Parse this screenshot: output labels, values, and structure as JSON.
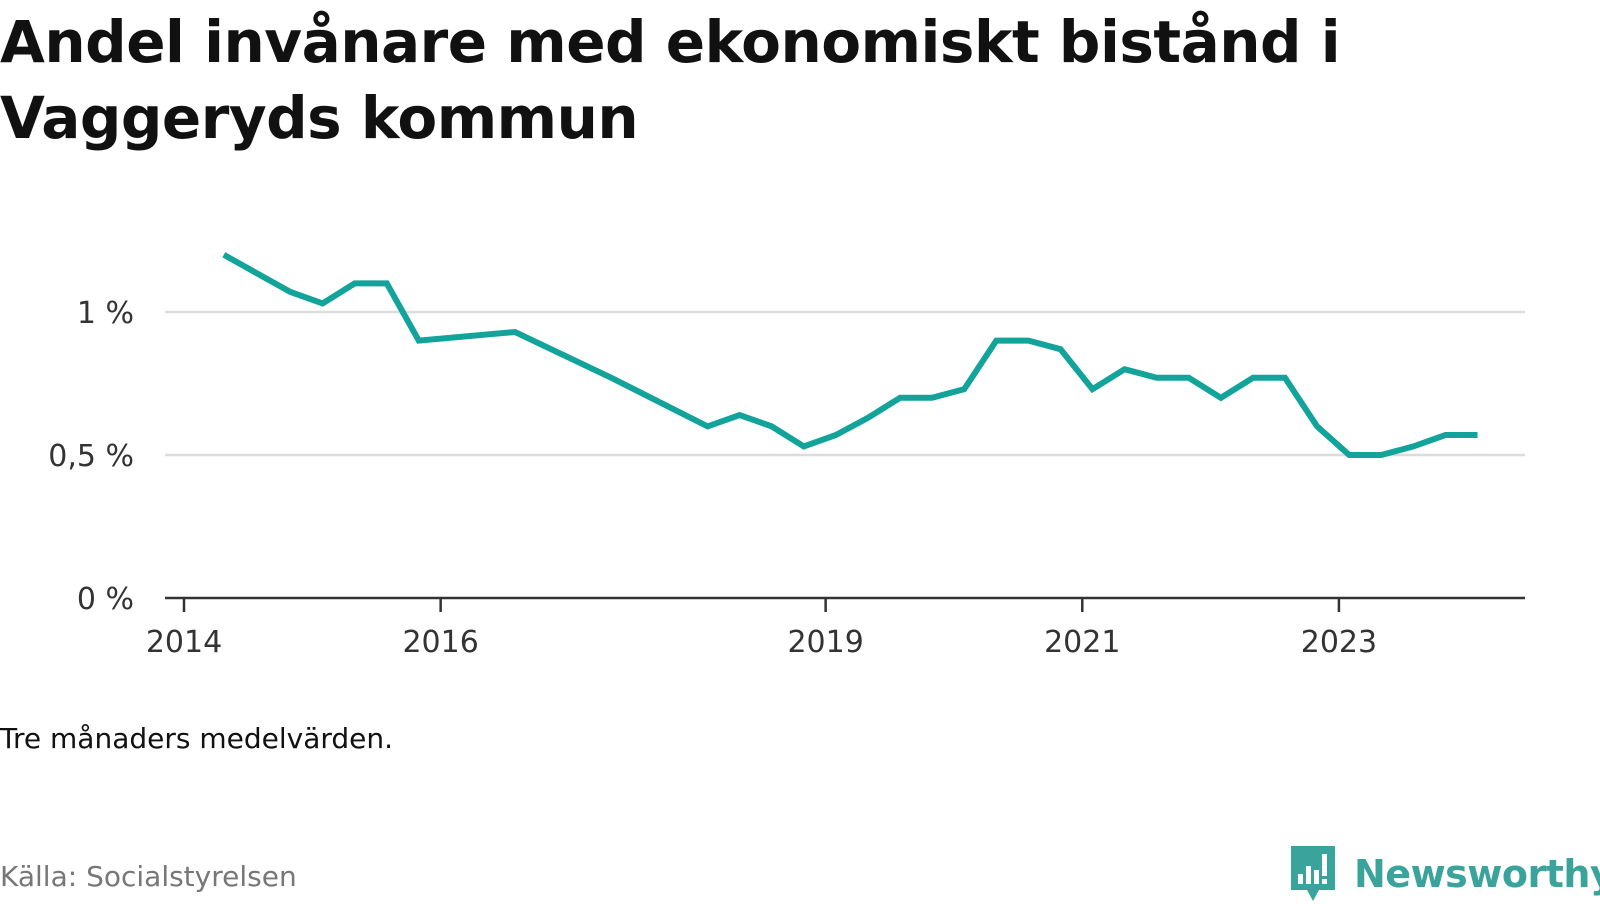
{
  "title": "Andel invånare med ekonomiskt bistånd i Vaggeryds kommun",
  "footnote": "Tre månaders medelvärden.",
  "source": "Källa: Socialstyrelsen",
  "brand": {
    "name": "Newsworthy",
    "logo_icon": "bar-chart-speech-bubble-icon",
    "color": "#3aa39b"
  },
  "colors": {
    "line": "#12a39b",
    "grid": "#dcdcdc",
    "axis": "#333333"
  },
  "chart_data": {
    "type": "line",
    "title": "Andel invånare med ekonomiskt bistånd i Vaggeryds kommun",
    "xlabel": "",
    "ylabel": "",
    "xlim": [
      2014.0,
      2024.45
    ],
    "ylim": [
      0,
      1.0
    ],
    "grid": true,
    "x_ticks": [
      {
        "value": 2014,
        "label": "2014"
      },
      {
        "value": 2016,
        "label": "2016"
      },
      {
        "value": 2019,
        "label": "2019"
      },
      {
        "value": 2021,
        "label": "2021"
      },
      {
        "value": 2023,
        "label": "2023"
      }
    ],
    "y_ticks": [
      {
        "value": 0,
        "label": "0 %"
      },
      {
        "value": 0.5,
        "label": "0,5 %"
      },
      {
        "value": 1.0,
        "label": "1 %"
      }
    ],
    "series": [
      {
        "name": "Andel invånare med ekonomiskt bistånd",
        "x": [
          2014.31,
          2014.83,
          2015.08,
          2015.33,
          2015.58,
          2015.83,
          2016.58,
          2017.33,
          2018.08,
          2018.33,
          2018.58,
          2018.83,
          2019.08,
          2019.33,
          2019.58,
          2019.83,
          2020.08,
          2020.33,
          2020.58,
          2020.83,
          2021.08,
          2021.33,
          2021.58,
          2021.83,
          2022.08,
          2022.33,
          2022.58,
          2022.83,
          2023.08,
          2023.33,
          2023.58,
          2023.83,
          2024.08
        ],
        "values": [
          1.2,
          1.07,
          1.03,
          1.1,
          1.1,
          0.9,
          0.93,
          0.77,
          0.6,
          0.64,
          0.6,
          0.53,
          0.57,
          0.63,
          0.7,
          0.7,
          0.73,
          0.9,
          0.9,
          0.87,
          0.73,
          0.8,
          0.77,
          0.77,
          0.7,
          0.77,
          0.77,
          0.6,
          0.5,
          0.5,
          0.53,
          0.57,
          0.57
        ]
      }
    ]
  }
}
